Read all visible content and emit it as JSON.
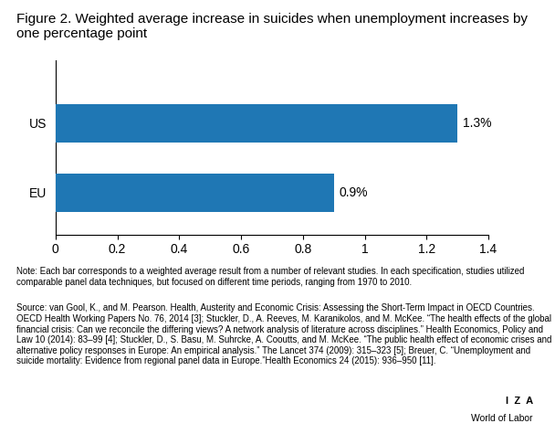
{
  "chart_data": {
    "type": "bar",
    "orientation": "horizontal",
    "title": "Figure 2. Weighted average increase in suicides when unemployment increases by one percentage point",
    "categories": [
      "US",
      "EU"
    ],
    "values": [
      1.3,
      0.9
    ],
    "value_labels": [
      "1.3%",
      "0.9%"
    ],
    "data_labels": true,
    "xlim": [
      0,
      1.4
    ],
    "xticks": [
      0,
      0.2,
      0.4,
      0.6,
      0.8,
      1,
      1.2,
      1.4
    ],
    "grid": false,
    "note": "Note: Each bar corresponds to a weighted average result from a number of relevant studies. In each specification, studies utilized comparable panel data techniques, but focused on different time periods, ranging from 1970 to 2010.",
    "source": "Source: van Gool, K., and M. Pearson. Health, Austerity and Economic Crisis: Assessing the Short-Term Impact in OECD Countries. OECD Health Working Papers No. 76, 2014 [3]; Stuckler, D., A. Reeves, M. Karanikolos, and M. McKee. “The health effects of the global financial crisis: Can we reconcile the differing views? A network analysis of literature across disciplines.” Health Economics, Policy and Law 10 (2014): 83–99 [4]; Stuckler, D., S. Basu, M. Suhrcke, A. Cooutts, and M. McKee. “The public health effect of economic crises and alternative policy responses in Europe: An empirical analysis.” The Lancet 374 (2009): 315–323 [5]; Breuer, C. “Unemployment and suicide mortality: Evidence from regional panel data in Europe.”Health Economics 24 (2015): 936–950 [11].",
    "annotations": [
      "I  Z  A",
      "World of Labor"
    ]
  }
}
